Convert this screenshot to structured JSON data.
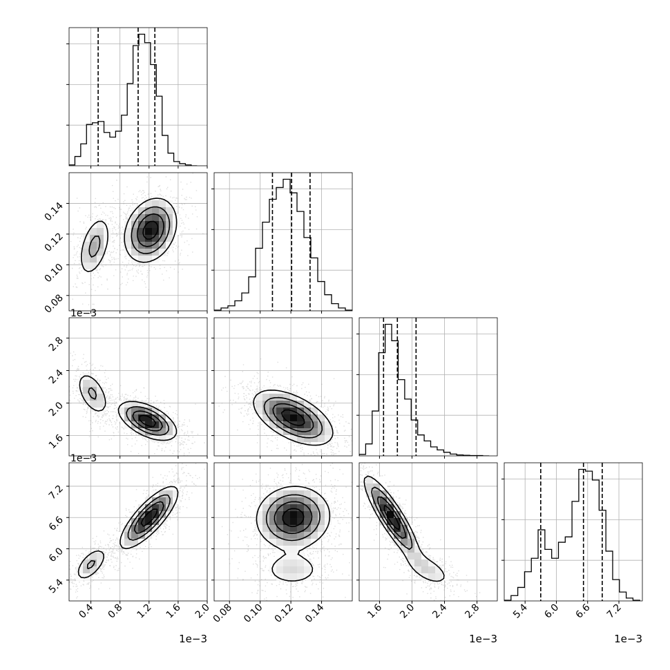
{
  "chart_data": {
    "type": "corner",
    "grid": true,
    "parameters": [
      {
        "id": "p0",
        "range": [
          0.0001,
          0.002
        ],
        "ticks": [
          "0.4",
          "0.8",
          "1.2",
          "1.6",
          "2.0"
        ],
        "tick_values": [
          0.0004,
          0.0008,
          0.0012,
          0.0016,
          0.002
        ],
        "offset_text": "1e−3",
        "quantiles": [
          0.0005,
          0.00105,
          0.00128
        ],
        "histogram": {
          "bin_edges": [
            0.0001,
            0.00018,
            0.00026,
            0.00034,
            0.00042,
            0.0005,
            0.00058,
            0.00066,
            0.00074,
            0.00082,
            0.0009,
            0.00098,
            0.00106,
            0.00114,
            0.00122,
            0.0013,
            0.00138,
            0.00146,
            0.00154,
            0.00162,
            0.0017,
            0.00178,
            0.00186
          ],
          "counts": [
            2,
            22,
            52,
            98,
            102,
            105,
            79,
            68,
            82,
            120,
            195,
            285,
            312,
            292,
            240,
            165,
            72,
            30,
            10,
            5,
            2,
            0
          ]
        }
      },
      {
        "id": "p1",
        "range": [
          0.07,
          0.16
        ],
        "ticks": [
          "0.08",
          "0.10",
          "0.12",
          "0.14"
        ],
        "tick_values": [
          0.08,
          0.1,
          0.12,
          0.14
        ],
        "offset_text": "",
        "quantiles": [
          0.108,
          0.1205,
          0.1325
        ],
        "histogram": {
          "bin_edges": [
            0.07,
            0.0745,
            0.079,
            0.0835,
            0.088,
            0.0925,
            0.097,
            0.1015,
            0.106,
            0.1105,
            0.115,
            0.1195,
            0.124,
            0.1285,
            0.133,
            0.1375,
            0.142,
            0.1465,
            0.151,
            0.1555,
            0.16
          ],
          "counts": [
            2,
            8,
            14,
            28,
            50,
            95,
            175,
            248,
            312,
            345,
            368,
            330,
            278,
            205,
            148,
            82,
            45,
            20,
            8,
            2
          ]
        }
      },
      {
        "id": "p2",
        "range": [
          0.00135,
          0.00305
        ],
        "ticks": [
          "1.6",
          "2.0",
          "2.4",
          "2.8"
        ],
        "tick_values": [
          0.0016,
          0.002,
          0.0024,
          0.0028
        ],
        "offset_text": "1e−3",
        "quantiles": [
          0.00165,
          0.00182,
          0.00205
        ],
        "histogram": {
          "bin_edges": [
            0.00135,
            0.00143,
            0.00151,
            0.00159,
            0.00167,
            0.00175,
            0.00183,
            0.00191,
            0.00199,
            0.00207,
            0.00215,
            0.00223,
            0.00231,
            0.00239,
            0.00247,
            0.00255,
            0.00263,
            0.00271,
            0.00279,
            0.00287,
            0.00295
          ],
          "counts": [
            5,
            40,
            150,
            345,
            440,
            385,
            255,
            190,
            120,
            70,
            50,
            30,
            20,
            12,
            6,
            3,
            2,
            1,
            1,
            0
          ]
        }
      },
      {
        "id": "p3",
        "range": [
          0.005,
          0.00765
        ],
        "ticks": [
          "5.4",
          "6.0",
          "6.6",
          "7.2"
        ],
        "tick_values": [
          0.0054,
          0.006,
          0.0066,
          0.0072
        ],
        "offset_text": "1e−3",
        "quantiles": [
          0.0057,
          0.00652,
          0.00688
        ],
        "histogram": {
          "bin_edges": [
            0.005,
            0.00513,
            0.00526,
            0.00539,
            0.00552,
            0.00565,
            0.00578,
            0.00591,
            0.00604,
            0.00617,
            0.0063,
            0.00643,
            0.00656,
            0.00669,
            0.00682,
            0.00695,
            0.00708,
            0.00721,
            0.00734,
            0.00747,
            0.0076
          ],
          "counts": [
            2,
            15,
            38,
            82,
            120,
            200,
            145,
            120,
            165,
            180,
            280,
            370,
            365,
            340,
            255,
            140,
            60,
            25,
            8,
            2
          ]
        }
      }
    ],
    "pairs": [
      {
        "x": 0,
        "y": 1,
        "rho": 0.45,
        "modes": [
          {
            "mx": 0.00122,
            "my": 0.1225,
            "sx": 0.00018,
            "sy": 0.0105,
            "w": 0.7,
            "r": 0.25
          },
          {
            "mx": 0.00045,
            "my": 0.112,
            "sx": 0.00012,
            "sy": 0.011,
            "w": 0.3,
            "r": 0.45
          }
        ]
      },
      {
        "x": 0,
        "y": 2,
        "rho": -0.7,
        "modes": [
          {
            "mx": 0.00118,
            "my": 0.00178,
            "sx": 0.0002,
            "sy": 0.00012,
            "w": 0.72,
            "r": -0.55
          },
          {
            "mx": 0.00042,
            "my": 0.00212,
            "sx": 0.00012,
            "sy": 0.00015,
            "w": 0.28,
            "r": -0.5
          }
        ]
      },
      {
        "x": 0,
        "y": 3,
        "rho": 0.9,
        "modes": [
          {
            "mx": 0.0012,
            "my": 0.0066,
            "sx": 0.0002,
            "sy": 0.0003,
            "w": 0.72,
            "r": 0.8
          },
          {
            "mx": 0.0004,
            "my": 0.0057,
            "sx": 0.00012,
            "sy": 0.00018,
            "w": 0.28,
            "r": 0.6
          }
        ]
      },
      {
        "x": 1,
        "y": 2,
        "rho": -0.55,
        "modes": [
          {
            "mx": 0.1215,
            "my": 0.00182,
            "sx": 0.013,
            "sy": 0.00017,
            "w": 1.0,
            "r": -0.55
          }
        ]
      },
      {
        "x": 1,
        "y": 3,
        "rho": 0.0,
        "modes": [
          {
            "mx": 0.1215,
            "my": 0.0066,
            "sx": 0.012,
            "sy": 0.0003,
            "w": 0.8,
            "r": 0.05
          },
          {
            "mx": 0.121,
            "my": 0.0056,
            "sx": 0.012,
            "sy": 0.0002,
            "w": 0.2,
            "r": 0.0
          }
        ]
      },
      {
        "x": 2,
        "y": 3,
        "rho": -0.88,
        "modes": [
          {
            "mx": 0.00175,
            "my": 0.0066,
            "sx": 0.00017,
            "sy": 0.0004,
            "w": 0.8,
            "r": -0.88
          },
          {
            "mx": 0.0022,
            "my": 0.0056,
            "sx": 0.00018,
            "sy": 0.0002,
            "w": 0.2,
            "r": -0.6
          }
        ]
      }
    ]
  }
}
